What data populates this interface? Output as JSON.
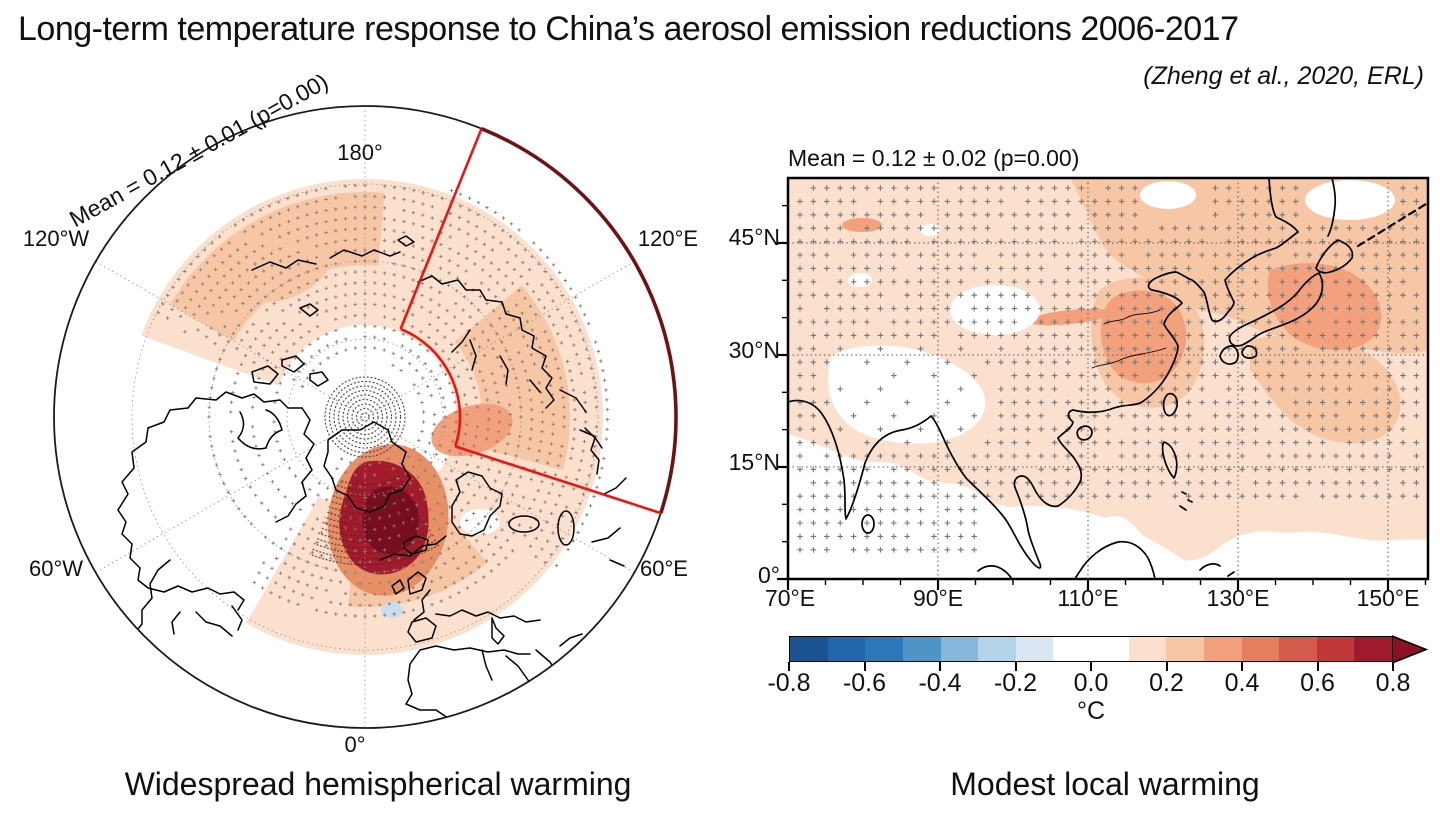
{
  "title": "Long-term temperature response to China’s aerosol emission reductions 2006-2017",
  "citation": "(Zheng et al., 2020, ERL)",
  "left_panel": {
    "mean_label": "Mean = 0.12 ± 0.01 (p=0.00)",
    "caption": "Widespread hemispherical warming",
    "projection": "north-polar-stereographic",
    "lon_labels": [
      "180°",
      "120°W",
      "120°E",
      "60°W",
      "60°E",
      "0°"
    ],
    "region_outline_color": "#ee1410",
    "region_outline_edge_color": "#701114"
  },
  "right_panel": {
    "mean_label": "Mean = 0.12 ± 0.02 (p=0.00)",
    "caption": "Modest local warming",
    "x_ticks": [
      "70°E",
      "90°E",
      "110°E",
      "130°E",
      "150°E"
    ],
    "y_ticks": [
      "45°N",
      "30°N",
      "15°N",
      "0°"
    ]
  },
  "colorbar": {
    "unit": "°C",
    "min": -0.8,
    "max": 0.8,
    "tick_labels": [
      "-0.8",
      "-0.6",
      "-0.4",
      "-0.2",
      "0.0",
      "0.2",
      "0.4",
      "0.6",
      "0.8"
    ],
    "colors": [
      "#1a5390",
      "#2267ac",
      "#2e77b6",
      "#4f94c6",
      "#85b8da",
      "#b3d3e8",
      "#d8e7f2",
      "#ffffff",
      "#ffffff",
      "#fbe0cd",
      "#f7c6a4",
      "#f2a17c",
      "#e57e5e",
      "#d45a4b",
      "#c1383b",
      "#9f1b2b"
    ],
    "arrow_color": "#8c1127"
  },
  "chart_data": [
    {
      "type": "heatmap",
      "subtype": "north-polar-stereographic map of surface temperature response",
      "title": "Mean = 0.12 ± 0.01 (p=0.00)",
      "caption": "Widespread hemispherical warming",
      "mean_c": 0.12,
      "uncertainty_c": 0.01,
      "p_value": 0.0,
      "units": "°C",
      "longitude_labels": [
        "180°",
        "120°W",
        "120°E",
        "60°W",
        "60°E",
        "0°"
      ],
      "annotations": "red sector outlines the East-Asia region (approx. 70°E–150°E); plus-sign stippling over warm (orange/red) shaded areas; darkest warming (>0.6 °C) near Greenland/Arctic; broad 0.1–0.3 °C warming band across mid-to-high latitudes"
    },
    {
      "type": "heatmap",
      "subtype": "lat-lon map of surface temperature response over Asia",
      "title": "Mean = 0.12 ± 0.02 (p=0.00)",
      "caption": "Modest local warming",
      "mean_c": 0.12,
      "uncertainty_c": 0.02,
      "p_value": 0.0,
      "units": "°C",
      "x_tick_labels": [
        "70°E",
        "90°E",
        "110°E",
        "130°E",
        "150°E"
      ],
      "y_tick_labels": [
        "0°",
        "15°N",
        "30°N",
        "45°N"
      ],
      "x_range_deg_e": [
        70,
        155
      ],
      "y_range_deg_n": [
        0,
        54
      ],
      "annotations": "mostly 0.1–0.2 °C warming with 0.2–0.4 °C patches over eastern China and the Japan region; plus-sign stippling across most of the domain"
    },
    {
      "type": "colorbar",
      "title": "°C",
      "range": [
        -0.8,
        0.8
      ],
      "tick_values": [
        -0.8,
        -0.6,
        -0.4,
        -0.2,
        0.0,
        0.2,
        0.4,
        0.6,
        0.8
      ],
      "bin_width": 0.1
    }
  ]
}
